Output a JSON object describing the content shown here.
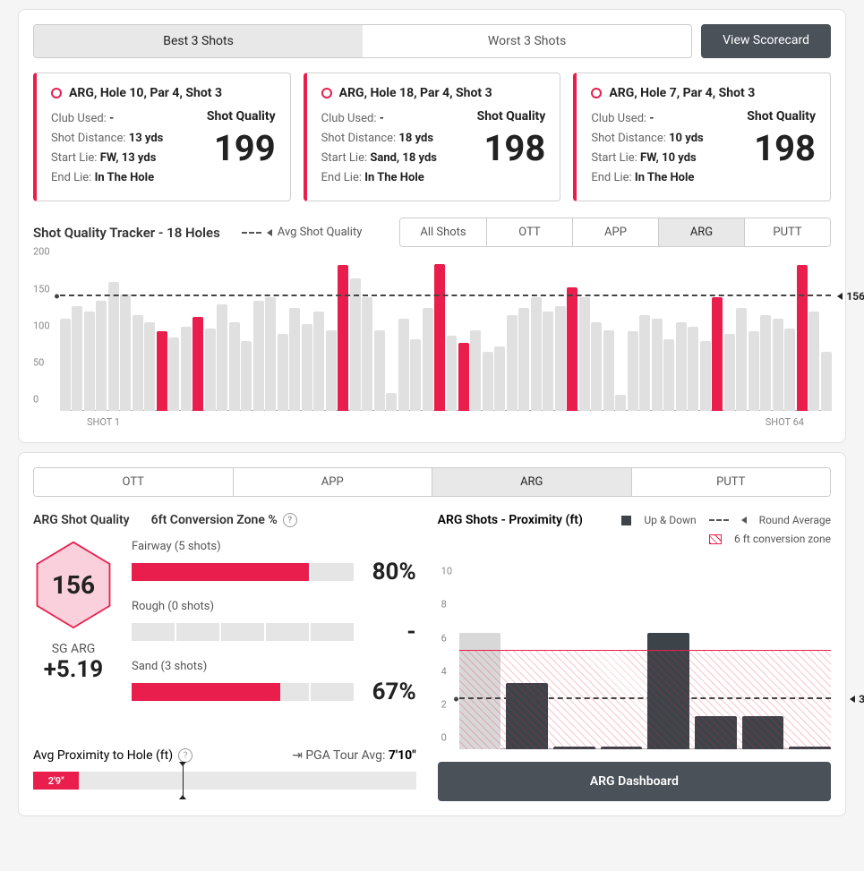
{
  "colors": {
    "accent": "#e91e4d",
    "dark": "#3d4449",
    "gray_bar": "#e0e0e0",
    "gray_bar2": "#d8d8d8"
  },
  "top_segment": {
    "best": "Best 3 Shots",
    "worst": "Worst 3 Shots",
    "active": "best"
  },
  "scorecard_btn": "View Scorecard",
  "shots": [
    {
      "title": "ARG, Hole 10, Par 4, Shot 3",
      "club_lbl": "Club Used:",
      "club": "-",
      "dist_lbl": "Shot Distance:",
      "dist": "13 yds",
      "start_lbl": "Start Lie:",
      "start": "FW, 13 yds",
      "end_lbl": "End Lie:",
      "end": "In The Hole",
      "sq_label": "Shot Quality",
      "sq": "199"
    },
    {
      "title": "ARG, Hole 18, Par 4, Shot 3",
      "club_lbl": "Club Used:",
      "club": "-",
      "dist_lbl": "Shot Distance:",
      "dist": "18 yds",
      "start_lbl": "Start Lie:",
      "start": "Sand, 18 yds",
      "end_lbl": "End Lie:",
      "end": "In The Hole",
      "sq_label": "Shot Quality",
      "sq": "198"
    },
    {
      "title": "ARG, Hole 7, Par 4, Shot 3",
      "club_lbl": "Club Used:",
      "club": "-",
      "dist_lbl": "Shot Distance:",
      "dist": "10 yds",
      "start_lbl": "Start Lie:",
      "start": "FW, 10 yds",
      "end_lbl": "End Lie:",
      "end": "In The Hole",
      "sq_label": "Shot Quality",
      "sq": "198"
    }
  ],
  "tracker": {
    "title": "Shot Quality Tracker - 18 Holes",
    "avg_legend": "Avg Shot Quality",
    "tabs": [
      "All Shots",
      "OTT",
      "APP",
      "ARG",
      "PUTT"
    ],
    "active_tab": "ARG",
    "yticks": [
      0,
      50,
      100,
      150,
      200
    ],
    "ylim": [
      0,
      200
    ],
    "avg_value": 156,
    "xlabel_first": "SHOT 1",
    "xlabel_last": "SHOT 64",
    "bars": [
      {
        "v": 125,
        "h": false
      },
      {
        "v": 142,
        "h": false
      },
      {
        "v": 135,
        "h": false
      },
      {
        "v": 150,
        "h": false
      },
      {
        "v": 175,
        "h": false
      },
      {
        "v": 158,
        "h": false
      },
      {
        "v": 130,
        "h": false
      },
      {
        "v": 120,
        "h": false
      },
      {
        "v": 108,
        "h": true
      },
      {
        "v": 100,
        "h": false
      },
      {
        "v": 115,
        "h": false
      },
      {
        "v": 128,
        "h": true
      },
      {
        "v": 112,
        "h": false
      },
      {
        "v": 145,
        "h": false
      },
      {
        "v": 120,
        "h": false
      },
      {
        "v": 95,
        "h": false
      },
      {
        "v": 150,
        "h": false
      },
      {
        "v": 155,
        "h": false
      },
      {
        "v": 105,
        "h": false
      },
      {
        "v": 140,
        "h": false
      },
      {
        "v": 118,
        "h": false
      },
      {
        "v": 135,
        "h": false
      },
      {
        "v": 110,
        "h": false
      },
      {
        "v": 198,
        "h": true
      },
      {
        "v": 180,
        "h": false
      },
      {
        "v": 155,
        "h": false
      },
      {
        "v": 110,
        "h": false
      },
      {
        "v": 25,
        "h": false
      },
      {
        "v": 125,
        "h": false
      },
      {
        "v": 98,
        "h": false
      },
      {
        "v": 140,
        "h": false
      },
      {
        "v": 199,
        "h": true
      },
      {
        "v": 102,
        "h": false
      },
      {
        "v": 92,
        "h": true
      },
      {
        "v": 110,
        "h": false
      },
      {
        "v": 80,
        "h": false
      },
      {
        "v": 88,
        "h": false
      },
      {
        "v": 130,
        "h": false
      },
      {
        "v": 140,
        "h": false
      },
      {
        "v": 155,
        "h": false
      },
      {
        "v": 135,
        "h": false
      },
      {
        "v": 142,
        "h": false
      },
      {
        "v": 168,
        "h": true
      },
      {
        "v": 155,
        "h": false
      },
      {
        "v": 120,
        "h": false
      },
      {
        "v": 110,
        "h": false
      },
      {
        "v": 22,
        "h": false
      },
      {
        "v": 108,
        "h": false
      },
      {
        "v": 130,
        "h": false
      },
      {
        "v": 125,
        "h": false
      },
      {
        "v": 98,
        "h": false
      },
      {
        "v": 120,
        "h": false
      },
      {
        "v": 115,
        "h": false
      },
      {
        "v": 95,
        "h": false
      },
      {
        "v": 155,
        "h": true
      },
      {
        "v": 105,
        "h": false
      },
      {
        "v": 140,
        "h": false
      },
      {
        "v": 108,
        "h": false
      },
      {
        "v": 130,
        "h": false
      },
      {
        "v": 125,
        "h": false
      },
      {
        "v": 112,
        "h": false
      },
      {
        "v": 198,
        "h": true
      },
      {
        "v": 135,
        "h": false
      },
      {
        "v": 80,
        "h": false
      }
    ]
  },
  "lower_tabs": {
    "items": [
      "OTT",
      "APP",
      "ARG",
      "PUTT"
    ],
    "active": "ARG"
  },
  "arg_sq": {
    "title": "ARG Shot Quality",
    "hex_value": "156",
    "sg_label": "SG ARG",
    "sg_value": "+5.19"
  },
  "conversion": {
    "title": "6ft Conversion Zone %",
    "items": [
      {
        "label": "Fairway (5 shots)",
        "pct_text": "80%",
        "fill": 0.8
      },
      {
        "label": "Rough (0 shots)",
        "pct_text": "-",
        "fill": 0
      },
      {
        "label": "Sand (3 shots)",
        "pct_text": "67%",
        "fill": 0.67
      }
    ]
  },
  "proximity": {
    "label": "Avg Proximity to Hole (ft)",
    "pga_label": "PGA Tour Avg:",
    "pga_value": "7'10\"",
    "value_text": "2'9\"",
    "fill": 0.12,
    "tick_pos": 0.39
  },
  "prox_chart": {
    "title": "ARG Shots - Proximity (ft)",
    "legend_updown": "Up & Down",
    "legend_round": "Round Average",
    "legend_conv": "6 ft conversion zone",
    "yticks": [
      0,
      2,
      4,
      6,
      8,
      10
    ],
    "ylim": [
      0,
      11
    ],
    "conv_zone_top": 6,
    "avg_value": 3,
    "bars": [
      {
        "v": 7,
        "color": "#d8d8d8"
      },
      {
        "v": 4,
        "color": "#3d4449"
      },
      {
        "v": 0.2,
        "color": "#3d4449"
      },
      {
        "v": 0.2,
        "color": "#3d4449"
      },
      {
        "v": 7,
        "color": "#3d4449"
      },
      {
        "v": 2,
        "color": "#3d4449"
      },
      {
        "v": 2,
        "color": "#3d4449"
      },
      {
        "v": 0.2,
        "color": "#3d4449"
      }
    ]
  },
  "dash_btn": "ARG Dashboard"
}
